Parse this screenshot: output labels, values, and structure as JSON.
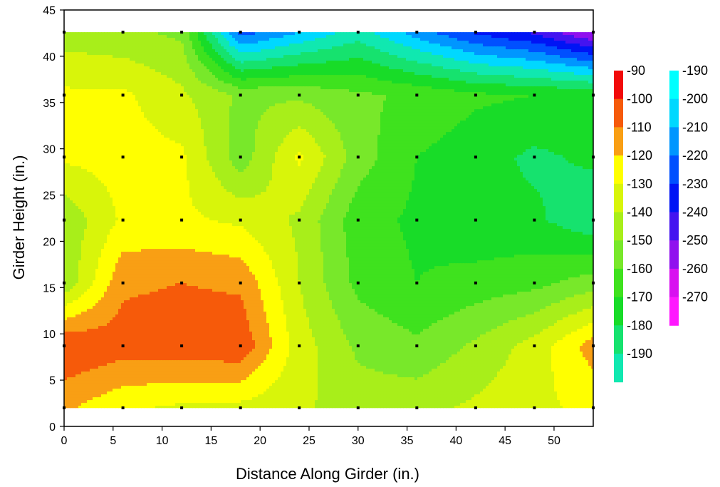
{
  "chart_data": {
    "type": "contour",
    "title": "",
    "xlabel": "Distance Along Girder (in.)",
    "ylabel": "Girder Height (in.)",
    "xlim": [
      0,
      54
    ],
    "ylim": [
      0,
      45
    ],
    "xticks": [
      0,
      5,
      10,
      15,
      20,
      25,
      30,
      35,
      40,
      45,
      50
    ],
    "yticks": [
      0,
      5,
      10,
      15,
      20,
      25,
      30,
      35,
      40,
      45
    ],
    "grid": false,
    "x": [
      0,
      6,
      12,
      18,
      24,
      30,
      36,
      42,
      48,
      54
    ],
    "y": [
      2,
      8.7,
      15.5,
      22.3,
      29.1,
      35.8,
      42.6
    ],
    "z": [
      [
        -118,
        -128,
        -132,
        -133,
        -138,
        -145,
        -143,
        -138,
        -132,
        -128
      ],
      [
        -100,
        -105,
        -103,
        -102,
        -135,
        -152,
        -158,
        -148,
        -136,
        -115
      ],
      [
        -148,
        -112,
        -110,
        -112,
        -140,
        -163,
        -170,
        -166,
        -163,
        -155
      ],
      [
        -148,
        -128,
        -128,
        -132,
        -142,
        -166,
        -172,
        -178,
        -178,
        -188
      ],
      [
        -128,
        -126,
        -128,
        -156,
        -128,
        -155,
        -170,
        -176,
        -182,
        -178
      ],
      [
        -128,
        -128,
        -138,
        -152,
        -152,
        -158,
        -162,
        -168,
        -170,
        -172
      ],
      [
        -145,
        -148,
        -152,
        -225,
        -210,
        -195,
        -215,
        -232,
        -242,
        -262
      ]
    ],
    "contour_levels": [
      -270,
      -260,
      -250,
      -240,
      -230,
      -220,
      -210,
      -200,
      -190,
      -180,
      -170,
      -160,
      -150,
      -140,
      -130,
      -120,
      -110,
      -100,
      -90
    ],
    "legend": {
      "placement": "right",
      "columns": [
        {
          "labels": [
            "-90",
            "-100",
            "-110",
            "-120",
            "-130",
            "-140",
            "-150",
            "-160",
            "-170",
            "-180",
            "-190"
          ],
          "colors": [
            "#f20a0a",
            "#f65a0a",
            "#f99f14",
            "#ffff00",
            "#d8f50a",
            "#a8ee1a",
            "#78e82a",
            "#3fe21e",
            "#18dc28",
            "#16e26e",
            "#10e8b0"
          ]
        },
        {
          "labels": [
            "-190",
            "-200",
            "-210",
            "-220",
            "-230",
            "-240",
            "-250",
            "-260",
            "-270"
          ],
          "colors": [
            "#00ffff",
            "#00d8ff",
            "#0096ff",
            "#0050ff",
            "#0014f5",
            "#4414f0",
            "#9010ee",
            "#d810f0",
            "#ff18ff"
          ]
        }
      ]
    },
    "colors": {
      "grid_points": "#000000",
      "frame": "#000000"
    }
  }
}
